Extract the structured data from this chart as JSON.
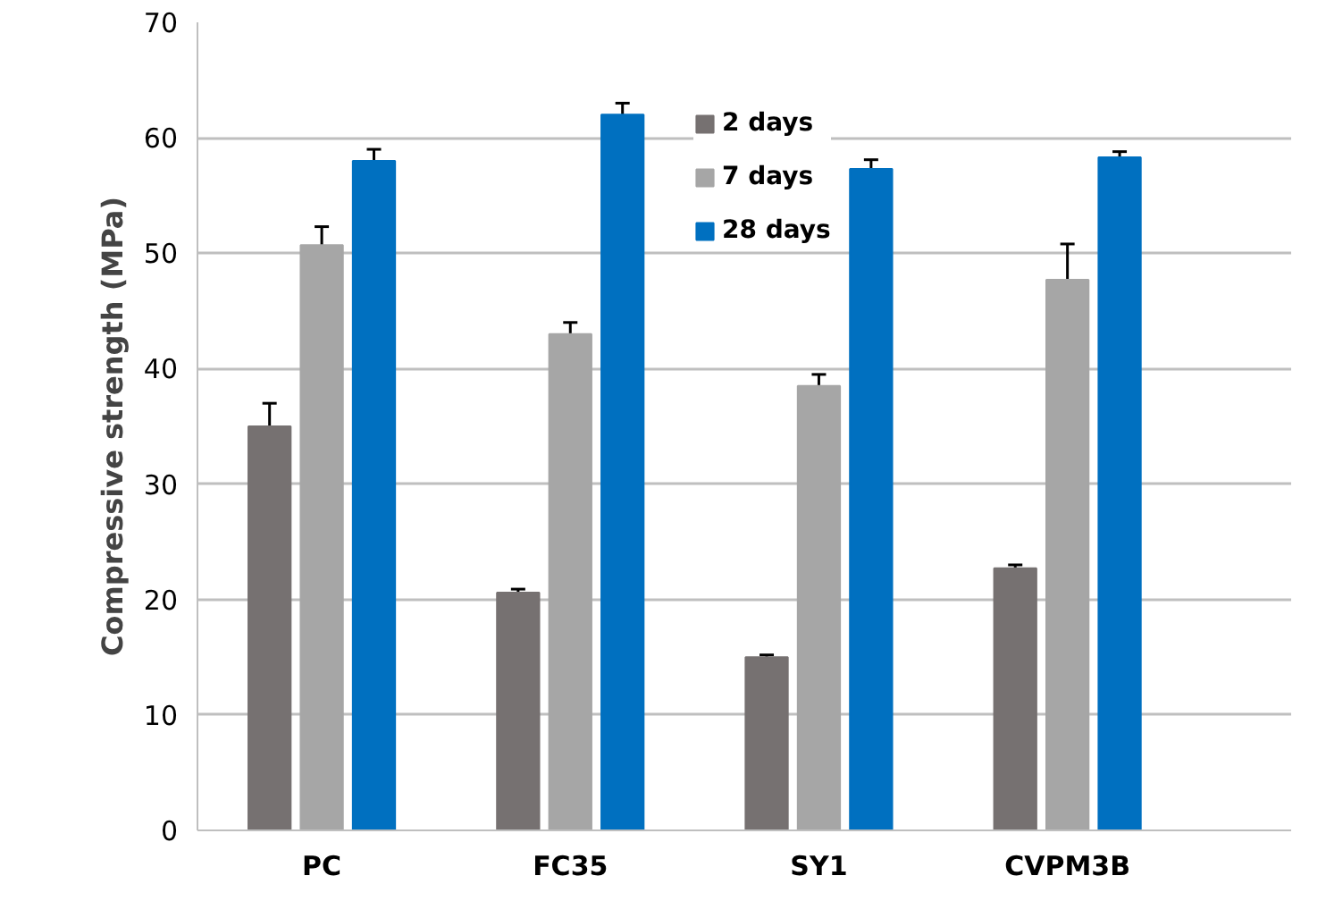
{
  "chart_data": {
    "type": "bar",
    "ylabel": "Compressive strength (MPa)",
    "categories": [
      "PC",
      "FC35",
      "SY1",
      "CVPM3B"
    ],
    "series": [
      {
        "name": "2 days",
        "color": "#767171",
        "values": [
          35,
          20.6,
          15,
          22.7
        ],
        "errors": [
          2,
          0.3,
          0.2,
          0.3
        ]
      },
      {
        "name": "7 days",
        "color": "#a6a6a6",
        "values": [
          50.7,
          43,
          38.5,
          47.7
        ],
        "errors": [
          1.6,
          1,
          1,
          3.1
        ]
      },
      {
        "name": "28 days",
        "color": "#0070c0",
        "values": [
          58,
          62,
          57.3,
          58.3
        ],
        "errors": [
          1,
          1,
          0.8,
          0.5
        ]
      }
    ],
    "ylim": [
      0,
      70
    ],
    "yticks": [
      0,
      10,
      20,
      30,
      40,
      50,
      60,
      70
    ],
    "grid": "y",
    "legend": "top"
  }
}
